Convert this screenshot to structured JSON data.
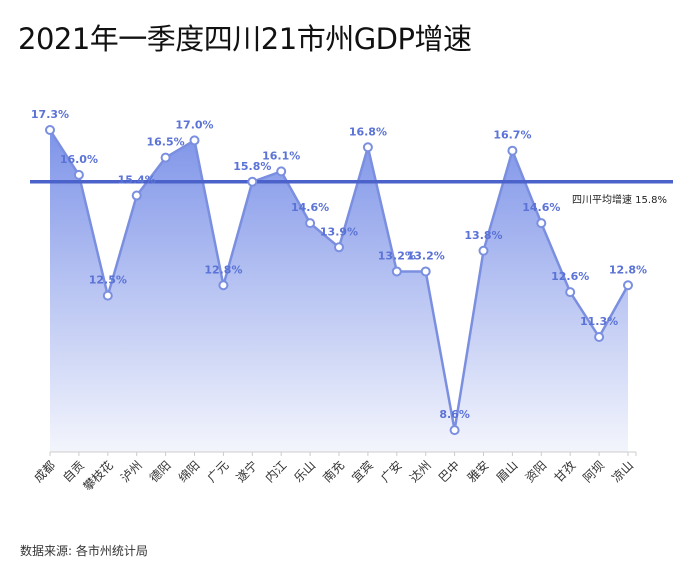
{
  "title": "2021年一季度四川21市州GDP增速",
  "source": "数据来源: 各市州统计局",
  "chart_data": {
    "type": "area",
    "title": "2021年一季度四川21市州GDP增速",
    "categories": [
      "成都",
      "自贡",
      "攀枝花",
      "泸州",
      "德阳",
      "绵阳",
      "广元",
      "遂宁",
      "内江",
      "乐山",
      "南充",
      "宜宾",
      "广安",
      "达州",
      "巴中",
      "雅安",
      "眉山",
      "资阳",
      "甘孜",
      "阿坝",
      "凉山"
    ],
    "values": [
      17.3,
      16.0,
      12.5,
      15.4,
      16.5,
      17.0,
      12.8,
      15.8,
      16.1,
      14.6,
      13.9,
      16.8,
      13.2,
      13.2,
      8.6,
      13.8,
      16.7,
      14.6,
      12.6,
      11.3,
      12.8
    ],
    "labels": [
      "17.3%",
      "16.0%",
      "12.5%",
      "15.4%",
      "16.5%",
      "17.0%",
      "12.8%",
      "15.8%",
      "16.1%",
      "14.6%",
      "13.9%",
      "16.8%",
      "13.2%",
      "13.2%",
      "8.6%",
      "13.8%",
      "16.7%",
      "14.6%",
      "12.6%",
      "11.3%",
      "12.8%"
    ],
    "reference_line": {
      "label": "四川平均增速 15.8%",
      "value": 15.8
    },
    "ylim": [
      8,
      17.3
    ],
    "grid": false,
    "colors": {
      "line": "#7b8fe0",
      "fill_top": "#7088e6",
      "fill_bottom": "#f2f4fc",
      "reference": "#4a62c9",
      "label": "#5b73d6"
    }
  }
}
